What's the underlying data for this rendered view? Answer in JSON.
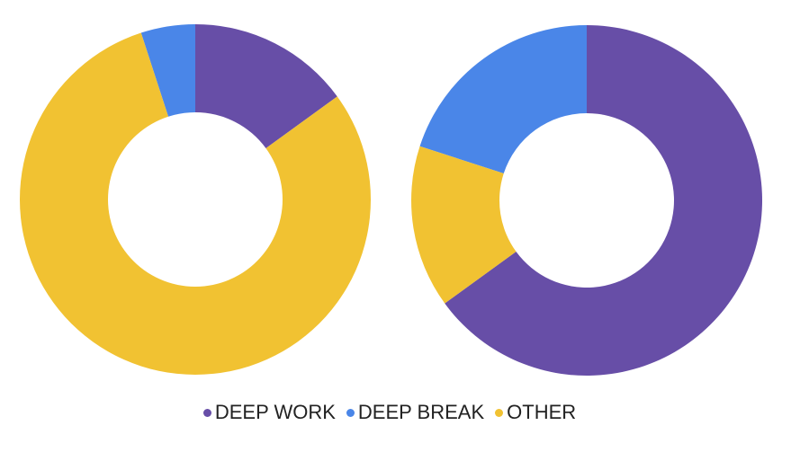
{
  "chart_data": {
    "type": "pie",
    "categories": [
      "DEEP WORK",
      "DEEP BREAK",
      "OTHER"
    ],
    "colors": [
      "#674ea7",
      "#4a86e8",
      "#f1c232"
    ],
    "series": [
      {
        "values": [
          15,
          5,
          80
        ]
      },
      {
        "values": [
          65,
          20,
          15
        ]
      }
    ]
  }
}
